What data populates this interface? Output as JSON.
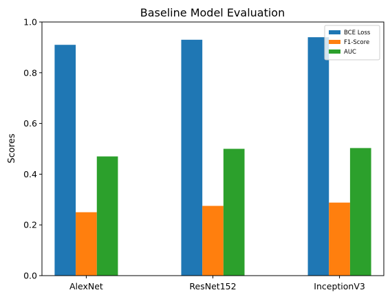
{
  "chart_data": {
    "type": "bar",
    "title": "Baseline Model Evaluation",
    "xlabel": "",
    "ylabel": "Scores",
    "categories": [
      "AlexNet",
      "ResNet152",
      "InceptionV3"
    ],
    "ylim": [
      0,
      1.0
    ],
    "yticks": [
      "0.0",
      "0.2",
      "0.4",
      "0.6",
      "0.8",
      "1.0"
    ],
    "grid": false,
    "legend_position": "top-right",
    "series": [
      {
        "name": "BCE Loss",
        "color": "#1f77b4",
        "values": [
          0.91,
          0.93,
          0.94
        ]
      },
      {
        "name": "F1-Score",
        "color": "#ff7f0e",
        "values": [
          0.25,
          0.275,
          0.288
        ]
      },
      {
        "name": "AUC",
        "color": "#2ca02c",
        "values": [
          0.47,
          0.5,
          0.503
        ]
      }
    ]
  }
}
